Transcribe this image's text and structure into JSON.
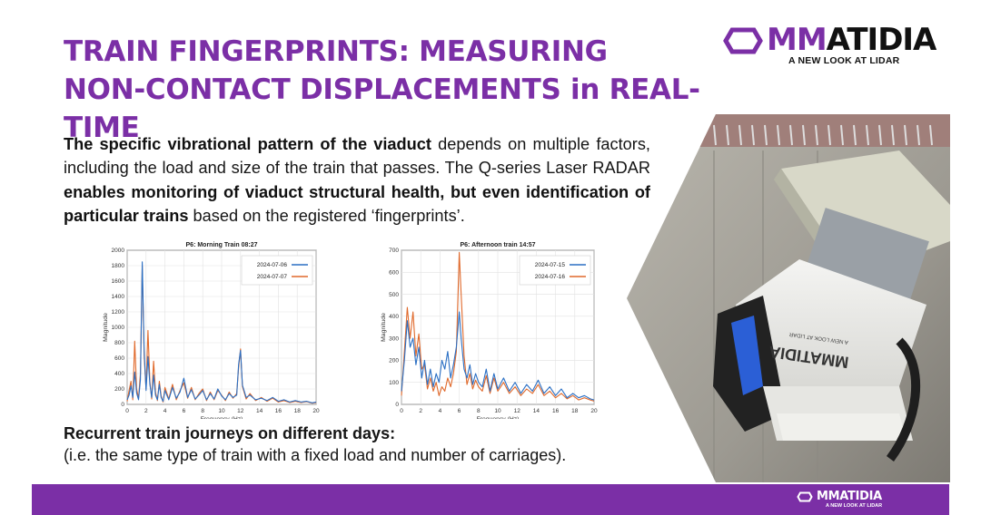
{
  "title": {
    "line1": "TRAIN FINGERPRINTS: MEASURING",
    "line2": "NON-CONTACT DISPLACEMENTS in REAL-TIME"
  },
  "brand": {
    "name_accent": "MM",
    "name_rest": "ATIDIA",
    "tagline": "A NEW LOOK AT LIDAR",
    "footer_name": "MMATIDIA",
    "footer_tagline": "A NEW LOOK AT LIDAR",
    "accent_color": "#7b2fa6"
  },
  "paragraph": {
    "b1": "The specific vibrational pattern of the viaduct",
    "t1": " depends on multiple factors, including the load and size of the train that passes. The Q-series Laser RADAR ",
    "b2": "enables monitoring of viaduct structural health, but even identification of particular trains",
    "t2": " based on the registered ‘fingerprints’."
  },
  "caption": {
    "title": "Recurrent train journeys on different days:",
    "text": "(i.e. the same type of train with a fixed load and number of carriages)."
  },
  "photo": {
    "device_label": "MMATIDIA",
    "device_tagline": "A NEW LOOK AT LIDAR"
  },
  "chart_data": [
    {
      "type": "line",
      "title": "P6: Morning Train 08:27",
      "xlabel": "Frequency (Hz)",
      "ylabel": "Magnitude",
      "xlim": [
        0,
        20
      ],
      "ylim": [
        0,
        2000
      ],
      "xticks": [
        0,
        2,
        4,
        6,
        8,
        10,
        12,
        14,
        16,
        18,
        20
      ],
      "yticks": [
        0,
        200,
        400,
        600,
        800,
        1000,
        1200,
        1400,
        1600,
        1800,
        2000
      ],
      "grid": true,
      "legend": "top-right",
      "series": [
        {
          "name": "2024-07-06",
          "color": "#2a6fc4",
          "x": [
            0,
            0.2,
            0.4,
            0.6,
            0.8,
            1.0,
            1.2,
            1.4,
            1.6,
            1.8,
            2.0,
            2.2,
            2.4,
            2.6,
            2.8,
            3.0,
            3.2,
            3.4,
            3.6,
            3.8,
            4.0,
            4.4,
            4.8,
            5.2,
            5.6,
            6.0,
            6.4,
            6.8,
            7.2,
            7.6,
            8.0,
            8.4,
            8.8,
            9.2,
            9.6,
            10.0,
            10.4,
            10.8,
            11.2,
            11.6,
            11.8,
            12.0,
            12.2,
            12.6,
            13.0,
            13.6,
            14.2,
            14.8,
            15.4,
            16.0,
            16.6,
            17.2,
            17.8,
            18.4,
            19.0,
            19.6,
            20.0
          ],
          "y": [
            60,
            120,
            240,
            90,
            420,
            150,
            60,
            320,
            1850,
            700,
            180,
            620,
            260,
            90,
            380,
            120,
            60,
            260,
            90,
            40,
            180,
            60,
            220,
            80,
            160,
            340,
            90,
            190,
            70,
            120,
            180,
            60,
            140,
            70,
            200,
            110,
            60,
            140,
            90,
            120,
            520,
            700,
            250,
            90,
            120,
            60,
            80,
            50,
            90,
            40,
            60,
            30,
            50,
            30,
            40,
            20,
            30
          ]
        },
        {
          "name": "2024-07-07",
          "color": "#e0692b",
          "x": [
            0,
            0.2,
            0.4,
            0.6,
            0.8,
            1.0,
            1.2,
            1.4,
            1.6,
            1.8,
            2.0,
            2.2,
            2.4,
            2.6,
            2.8,
            3.0,
            3.2,
            3.4,
            3.6,
            3.8,
            4.0,
            4.4,
            4.8,
            5.2,
            5.6,
            6.0,
            6.4,
            6.8,
            7.2,
            7.6,
            8.0,
            8.4,
            8.8,
            9.2,
            9.6,
            10.0,
            10.4,
            10.8,
            11.2,
            11.6,
            11.8,
            12.0,
            12.2,
            12.6,
            13.0,
            13.6,
            14.2,
            14.8,
            15.4,
            16.0,
            16.6,
            17.2,
            17.8,
            18.4,
            19.0,
            19.6,
            20.0
          ],
          "y": [
            40,
            180,
            300,
            60,
            820,
            200,
            80,
            400,
            1800,
            620,
            200,
            960,
            300,
            70,
            560,
            160,
            50,
            300,
            110,
            30,
            220,
            70,
            260,
            60,
            180,
            280,
            80,
            220,
            60,
            140,
            200,
            50,
            160,
            60,
            180,
            120,
            50,
            160,
            80,
            140,
            480,
            720,
            230,
            70,
            140,
            50,
            90,
            40,
            80,
            30,
            50,
            25,
            40,
            25,
            35,
            15,
            25
          ]
        }
      ]
    },
    {
      "type": "line",
      "title": "P6: Afternoon train 14:57",
      "xlabel": "Frequency (Hz)",
      "ylabel": "Magnitude",
      "xlim": [
        0,
        20
      ],
      "ylim": [
        0,
        700
      ],
      "xticks": [
        0,
        2,
        4,
        6,
        8,
        10,
        12,
        14,
        16,
        18,
        20
      ],
      "yticks": [
        0,
        100,
        200,
        300,
        400,
        500,
        600,
        700
      ],
      "grid": true,
      "legend": "top-right",
      "series": [
        {
          "name": "2024-07-15",
          "color": "#2a6fc4",
          "x": [
            0,
            0.3,
            0.6,
            0.9,
            1.2,
            1.5,
            1.8,
            2.1,
            2.4,
            2.7,
            3.0,
            3.3,
            3.6,
            3.9,
            4.2,
            4.5,
            4.8,
            5.1,
            5.4,
            5.7,
            6.0,
            6.2,
            6.5,
            6.8,
            7.1,
            7.4,
            7.7,
            8.0,
            8.4,
            8.8,
            9.2,
            9.6,
            10.0,
            10.6,
            11.2,
            11.8,
            12.4,
            13.0,
            13.6,
            14.2,
            14.8,
            15.4,
            16.0,
            16.6,
            17.2,
            17.8,
            18.4,
            19.0,
            19.6,
            20.0
          ],
          "y": [
            60,
            200,
            380,
            260,
            300,
            180,
            260,
            120,
            200,
            90,
            160,
            80,
            140,
            100,
            200,
            160,
            240,
            120,
            180,
            260,
            420,
            300,
            160,
            120,
            180,
            90,
            140,
            100,
            80,
            160,
            60,
            140,
            70,
            120,
            60,
            100,
            50,
            90,
            60,
            110,
            50,
            80,
            40,
            70,
            30,
            50,
            30,
            40,
            25,
            20
          ]
        },
        {
          "name": "2024-07-16",
          "color": "#e0692b",
          "x": [
            0,
            0.3,
            0.6,
            0.9,
            1.2,
            1.5,
            1.8,
            2.1,
            2.4,
            2.7,
            3.0,
            3.3,
            3.6,
            3.9,
            4.2,
            4.5,
            4.8,
            5.1,
            5.4,
            5.7,
            6.0,
            6.2,
            6.5,
            6.8,
            7.1,
            7.4,
            7.7,
            8.0,
            8.4,
            8.8,
            9.2,
            9.6,
            10.0,
            10.6,
            11.2,
            11.8,
            12.4,
            13.0,
            13.6,
            14.2,
            14.8,
            15.4,
            16.0,
            16.6,
            17.2,
            17.8,
            18.4,
            19.0,
            19.6,
            20.0
          ],
          "y": [
            40,
            240,
            440,
            300,
            420,
            220,
            320,
            160,
            180,
            70,
            120,
            60,
            100,
            40,
            80,
            60,
            120,
            80,
            140,
            240,
            690,
            500,
            220,
            90,
            140,
            70,
            110,
            80,
            60,
            130,
            50,
            120,
            60,
            100,
            50,
            80,
            40,
            70,
            50,
            90,
            40,
            60,
            30,
            50,
            25,
            40,
            20,
            30,
            20,
            15
          ]
        }
      ]
    }
  ]
}
